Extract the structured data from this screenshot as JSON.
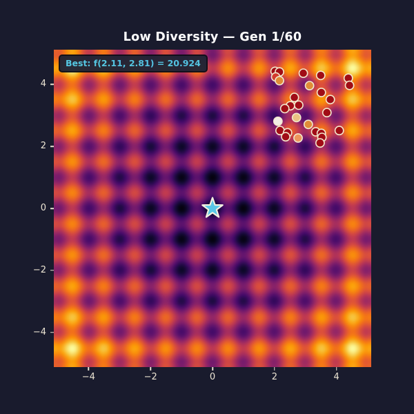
{
  "colors": {
    "page_bg": "#191b2d",
    "title": "#ffffff",
    "tick_label": "#ece5d4",
    "tick_mark": "#e8e2d2",
    "annotation_text": "#4fc8ea",
    "annotation_bg": "#202436",
    "annotation_border": "#0c0e18",
    "point_edge": "#f2e9ce",
    "star_fill": "#58c8e8",
    "star_edge": "#f4f0e0"
  },
  "header": {
    "title": "Low Diversity — Gen 1/60"
  },
  "annotation": {
    "label": "Best: f(2.11, 2.81) = 20.924"
  },
  "chart_data": {
    "type": "heatmap",
    "title": "Low Diversity — Gen 1/60",
    "function": "rastrigin",
    "x_range": [
      -5.12,
      5.12
    ],
    "y_range": [
      -5.12,
      5.12
    ],
    "value_range": [
      0,
      80.7
    ],
    "grid_resolution": 82,
    "colormap": "inferno",
    "colormap_stops": [
      [
        0.0,
        0,
        0,
        4
      ],
      [
        0.1,
        22,
        11,
        57
      ],
      [
        0.2,
        66,
        10,
        104
      ],
      [
        0.3,
        106,
        23,
        110
      ],
      [
        0.4,
        147,
        38,
        103
      ],
      [
        0.5,
        188,
        55,
        84
      ],
      [
        0.6,
        221,
        81,
        58
      ],
      [
        0.7,
        243,
        114,
        25
      ],
      [
        0.8,
        252,
        155,
        6
      ],
      [
        0.9,
        246,
        200,
        69
      ],
      [
        1.0,
        252,
        255,
        164
      ]
    ],
    "x_tick_values": [
      -4,
      -2,
      0,
      2,
      4
    ],
    "x_tick_labels": [
      "−4",
      "−2",
      "0",
      "2",
      "4"
    ],
    "y_tick_values": [
      4,
      2,
      0,
      -2,
      -4
    ],
    "y_tick_labels": [
      "4",
      "2",
      "0",
      "−2",
      "−4"
    ],
    "generation": 1,
    "total_generations": 60,
    "best": {
      "x": 2.11,
      "y": 2.81,
      "fitness": 20.924
    },
    "global_optimum": {
      "x": 0,
      "y": 0
    },
    "population": [
      {
        "x": 2.02,
        "y": 4.42,
        "color": "#a10d16"
      },
      {
        "x": 2.16,
        "y": 4.4,
        "color": "#a10d16"
      },
      {
        "x": 2.04,
        "y": 4.24,
        "color": "#d33c2d"
      },
      {
        "x": 2.16,
        "y": 4.12,
        "color": "#e08c37"
      },
      {
        "x": 2.93,
        "y": 4.36,
        "color": "#a10d16"
      },
      {
        "x": 3.49,
        "y": 4.29,
        "color": "#a10d16"
      },
      {
        "x": 4.38,
        "y": 4.2,
        "color": "#a10d16"
      },
      {
        "x": 4.42,
        "y": 3.97,
        "color": "#a10d16"
      },
      {
        "x": 3.13,
        "y": 3.96,
        "color": "#e08c37"
      },
      {
        "x": 3.51,
        "y": 3.74,
        "color": "#a10d16"
      },
      {
        "x": 2.64,
        "y": 3.58,
        "color": "#a10d16"
      },
      {
        "x": 3.8,
        "y": 3.51,
        "color": "#a10d16"
      },
      {
        "x": 2.51,
        "y": 3.31,
        "color": "#a10d16"
      },
      {
        "x": 2.33,
        "y": 3.22,
        "color": "#a10d16"
      },
      {
        "x": 2.78,
        "y": 3.33,
        "color": "#a10d16"
      },
      {
        "x": 3.69,
        "y": 3.09,
        "color": "#a10d16"
      },
      {
        "x": 2.71,
        "y": 2.93,
        "color": "#eac383"
      },
      {
        "x": 3.09,
        "y": 2.71,
        "color": "#e08c37"
      },
      {
        "x": 2.11,
        "y": 2.81,
        "color": "#f2ede4"
      },
      {
        "x": 2.18,
        "y": 2.51,
        "color": "#a10d16"
      },
      {
        "x": 2.42,
        "y": 2.44,
        "color": "#a10d16"
      },
      {
        "x": 2.36,
        "y": 2.31,
        "color": "#a10d16"
      },
      {
        "x": 3.33,
        "y": 2.47,
        "color": "#a10d16"
      },
      {
        "x": 3.51,
        "y": 2.42,
        "color": "#a10d16"
      },
      {
        "x": 4.09,
        "y": 2.51,
        "color": "#a10d16"
      },
      {
        "x": 2.76,
        "y": 2.27,
        "color": "#ee965c"
      },
      {
        "x": 3.53,
        "y": 2.29,
        "color": "#a10d16"
      },
      {
        "x": 3.47,
        "y": 2.11,
        "color": "#a10d16"
      }
    ]
  }
}
